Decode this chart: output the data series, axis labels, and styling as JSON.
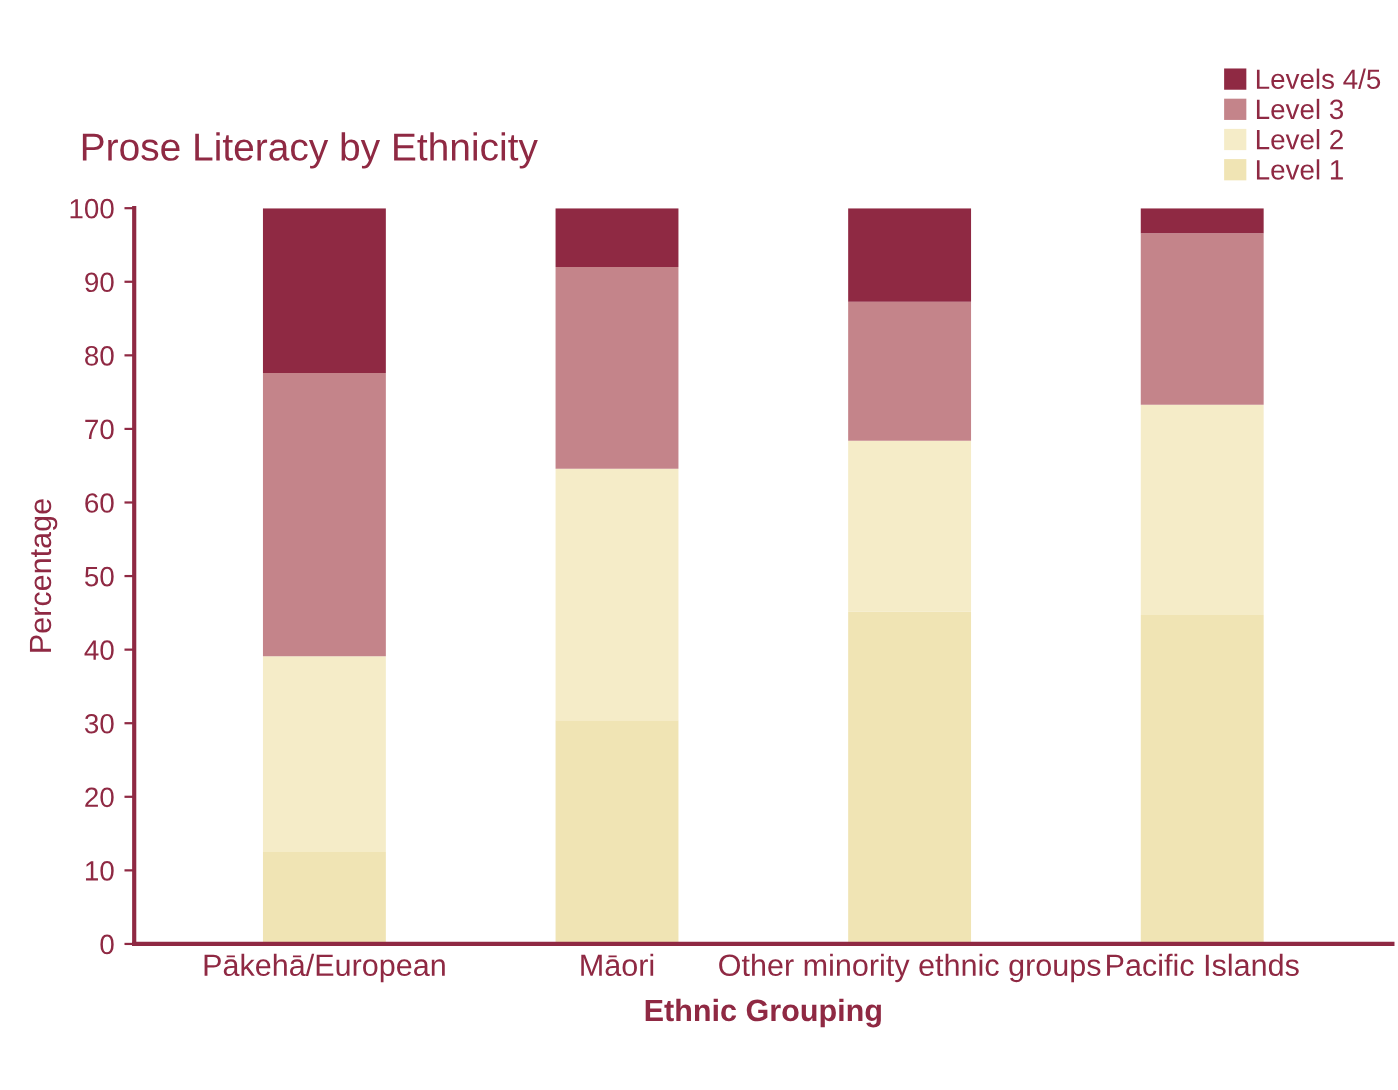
{
  "chart_data": {
    "type": "bar",
    "stacked": true,
    "title": "Prose Literacy by Ethnicity",
    "xlabel": "Ethnic Grouping",
    "ylabel": "Percentage",
    "categories": [
      "Pākehā/European",
      "Māori",
      "Other minority ethnic groups",
      "Pacific Islands"
    ],
    "series": [
      {
        "name": "Level 1",
        "color": "#f0e4b4",
        "values": [
          12.5,
          30.4,
          45.2,
          44.7
        ]
      },
      {
        "name": "Level 2",
        "color": "#f5ecc8",
        "values": [
          26.6,
          34.2,
          23.2,
          28.6
        ]
      },
      {
        "name": "Level 3",
        "color": "#c4848a",
        "values": [
          38.5,
          27.4,
          18.9,
          23.3
        ]
      },
      {
        "name": "Levels 4/5",
        "color": "#8f2943",
        "values": [
          22.4,
          8.0,
          12.7,
          3.4
        ]
      }
    ],
    "ylim": [
      0,
      100
    ],
    "yticks": [
      0,
      10,
      20,
      30,
      40,
      50,
      60,
      70,
      80,
      90,
      100
    ],
    "grid": false,
    "legend": "top right"
  }
}
